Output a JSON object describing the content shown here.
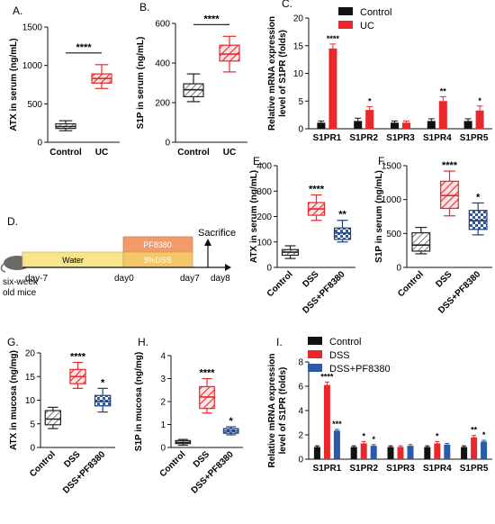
{
  "colors": {
    "black": "#111111",
    "red": "#e8282b",
    "blue": "#2b5aa8",
    "gray_hatch": "#555555",
    "pink_fill": "#f4a7a7",
    "orange": "#f29a6a",
    "yellow": "#f6e58d",
    "yellow_dark": "#f3c66a"
  },
  "diagram": {
    "label": "D.",
    "mouse_text_1": "six-week",
    "mouse_text_2": "old mice",
    "water": "Water",
    "pf": "PF8380",
    "dss": "3%DSS",
    "sacrifice": "Sacrifice",
    "days": [
      "day-7",
      "day0",
      "day7",
      "day8"
    ]
  },
  "chart_data": [
    {
      "id": "A",
      "type": "box",
      "panel_label": "A.",
      "ylabel": "ATX in serum (ng/mL)",
      "ylim": [
        0,
        1500
      ],
      "yticks": [
        0,
        500,
        1000,
        1500
      ],
      "categories": [
        "Control",
        "UC"
      ],
      "boxes": [
        {
          "min": 150,
          "q1": 180,
          "median": 205,
          "q3": 240,
          "max": 280,
          "style": "gray-hatch"
        },
        {
          "min": 700,
          "q1": 770,
          "median": 830,
          "q3": 890,
          "max": 1010,
          "style": "red-hatch"
        }
      ],
      "significance": "****"
    },
    {
      "id": "B",
      "type": "box",
      "panel_label": "B.",
      "ylabel": "S1P in serum (ng/mL)",
      "ylim": [
        0,
        600
      ],
      "yticks": [
        0,
        200,
        400,
        600
      ],
      "categories": [
        "Control",
        "UC"
      ],
      "boxes": [
        {
          "min": 205,
          "q1": 230,
          "median": 265,
          "q3": 295,
          "max": 345,
          "style": "gray-hatch"
        },
        {
          "min": 355,
          "q1": 410,
          "median": 445,
          "q3": 490,
          "max": 535,
          "style": "red-hatch"
        }
      ],
      "significance": "****"
    },
    {
      "id": "C",
      "type": "bar",
      "panel_label": "C.",
      "ylabel": "Relative mRNA expression level of S1PR (folds)",
      "ylim": [
        0,
        20
      ],
      "yticks": [
        0,
        5,
        10,
        15,
        20
      ],
      "categories": [
        "S1PR1",
        "S1PR2",
        "S1PR3",
        "S1PR4",
        "S1PR5"
      ],
      "series": [
        {
          "name": "Control",
          "values": [
            1.1,
            1.4,
            1.1,
            1.4,
            1.4
          ],
          "errors": [
            0.3,
            0.5,
            0.3,
            0.4,
            0.4
          ]
        },
        {
          "name": "UC",
          "values": [
            14.5,
            3.4,
            1.1,
            5.0,
            3.3
          ],
          "errors": [
            0.8,
            0.6,
            0.3,
            0.8,
            0.8
          ]
        }
      ],
      "annotations": [
        "****",
        "*",
        "",
        "**",
        "*"
      ],
      "legend": "top-right"
    },
    {
      "id": "E",
      "type": "box",
      "panel_label": "E.",
      "ylabel": "ATX in serum (ng/mL)",
      "ylim": [
        0,
        400
      ],
      "yticks": [
        0,
        100,
        200,
        300,
        400
      ],
      "categories": [
        "Control",
        "DSS",
        "DSS+PF8380"
      ],
      "boxes": [
        {
          "min": 35,
          "q1": 48,
          "median": 60,
          "q3": 70,
          "max": 85,
          "style": "gray-hatch"
        },
        {
          "min": 185,
          "q1": 205,
          "median": 230,
          "q3": 255,
          "max": 285,
          "style": "red-hatch"
        },
        {
          "min": 100,
          "q1": 110,
          "median": 135,
          "q3": 155,
          "max": 185,
          "style": "blue-check"
        }
      ],
      "annotations": [
        "",
        "****",
        "**"
      ]
    },
    {
      "id": "F",
      "type": "box",
      "panel_label": "F.",
      "ylabel": "S1P in serum (ng/mL)",
      "ylim": [
        0,
        1500
      ],
      "yticks": [
        0,
        500,
        1000,
        1500
      ],
      "categories": [
        "Control",
        "DSS",
        "DSS+PF8380"
      ],
      "boxes": [
        {
          "min": 200,
          "q1": 240,
          "median": 330,
          "q3": 510,
          "max": 590,
          "style": "gray-hatch"
        },
        {
          "min": 760,
          "q1": 870,
          "median": 1060,
          "q3": 1270,
          "max": 1420,
          "style": "red-hatch"
        },
        {
          "min": 480,
          "q1": 560,
          "median": 690,
          "q3": 840,
          "max": 950,
          "style": "blue-check"
        }
      ],
      "annotations": [
        "",
        "****",
        "*"
      ]
    },
    {
      "id": "G",
      "type": "box",
      "panel_label": "G.",
      "ylabel": "ATX in mucosa (ng/mg)",
      "ylim": [
        0,
        20
      ],
      "yticks": [
        0,
        5,
        10,
        15,
        20
      ],
      "categories": [
        "Control",
        "DSS",
        "DSS+PF8380"
      ],
      "boxes": [
        {
          "min": 4,
          "q1": 4.8,
          "median": 6.0,
          "q3": 7.8,
          "max": 8.5,
          "style": "gray-hatch"
        },
        {
          "min": 12.5,
          "q1": 13.5,
          "median": 15.0,
          "q3": 16.5,
          "max": 18.0,
          "style": "red-hatch"
        },
        {
          "min": 7.5,
          "q1": 8.8,
          "median": 9.8,
          "q3": 11.0,
          "max": 12.5,
          "style": "blue-check"
        }
      ],
      "annotations": [
        "",
        "****",
        "*"
      ]
    },
    {
      "id": "H",
      "type": "box",
      "panel_label": "H.",
      "ylabel": "S1P in mucosa (ng/mg)",
      "ylim": [
        0,
        4
      ],
      "yticks": [
        0,
        1,
        2,
        3,
        4
      ],
      "categories": [
        "Control",
        "DSS",
        "DSS+PF8380"
      ],
      "boxes": [
        {
          "min": 0.1,
          "q1": 0.17,
          "median": 0.22,
          "q3": 0.3,
          "max": 0.35,
          "style": "gray-hatch"
        },
        {
          "min": 1.5,
          "q1": 1.7,
          "median": 2.2,
          "q3": 2.65,
          "max": 3.0,
          "style": "red-hatch"
        },
        {
          "min": 0.55,
          "q1": 0.62,
          "median": 0.72,
          "q3": 0.82,
          "max": 0.9,
          "style": "blue-check"
        }
      ],
      "annotations": [
        "",
        "****",
        "*"
      ]
    },
    {
      "id": "I",
      "type": "bar",
      "panel_label": "I.",
      "ylabel": "Relative mRNA expression level of S1PR (folds)",
      "ylim": [
        0,
        8
      ],
      "yticks": [
        0,
        2,
        4,
        6,
        8
      ],
      "categories": [
        "S1PR1",
        "S1PR2",
        "S1PR3",
        "S1PR4",
        "S1PR5"
      ],
      "series": [
        {
          "name": "Control",
          "values": [
            1.0,
            1.0,
            1.0,
            1.0,
            1.0
          ],
          "errors": [
            0.1,
            0.1,
            0.1,
            0.1,
            0.1
          ]
        },
        {
          "name": "DSS",
          "values": [
            6.1,
            1.3,
            1.0,
            1.3,
            1.8
          ],
          "errors": [
            0.25,
            0.15,
            0.1,
            0.15,
            0.15
          ]
        },
        {
          "name": "DSS+PF8380",
          "values": [
            2.35,
            1.1,
            1.1,
            1.2,
            1.45
          ],
          "errors": [
            0.1,
            0.1,
            0.1,
            0.1,
            0.1
          ]
        }
      ],
      "annotations": [
        [
          "****",
          "***"
        ],
        [
          "*",
          "*"
        ],
        [
          "",
          ""
        ],
        [
          "*",
          ""
        ],
        [
          "**",
          "*"
        ]
      ],
      "legend": "top-left"
    }
  ]
}
